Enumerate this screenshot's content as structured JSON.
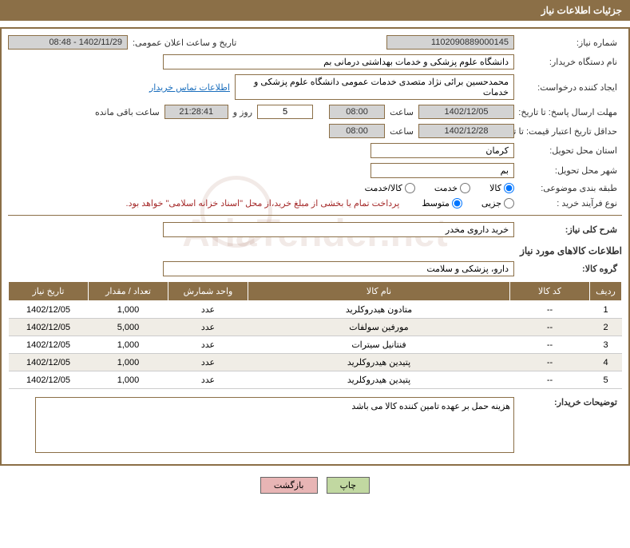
{
  "header": {
    "title": "جزئیات اطلاعات نیاز"
  },
  "fields": {
    "need_number_label": "شماره نیاز:",
    "need_number": "1102090889000145",
    "announce_datetime_label": "تاریخ و ساعت اعلان عمومی:",
    "announce_datetime": "1402/11/29 - 08:48",
    "buyer_org_label": "نام دستگاه خریدار:",
    "buyer_org": "دانشگاه علوم پزشکی و خدمات بهداشتی  درمانی بم",
    "requester_label": "ایجاد کننده درخواست:",
    "requester": "محمدحسین برائی نژاد متصدی خدمات عمومی دانشگاه علوم پزشکی و خدمات",
    "buyer_contact_link": "اطلاعات تماس خریدار",
    "deadline_label": "مهلت ارسال پاسخ: تا تاریخ:",
    "deadline_date": "1402/12/05",
    "hour_label": "ساعت",
    "deadline_hour": "08:00",
    "days_count": "5",
    "days_and_label": "روز و",
    "countdown": "21:28:41",
    "remaining_label": "ساعت باقی مانده",
    "validity_label": "حداقل تاریخ اعتبار قیمت: تا تاریخ:",
    "validity_date": "1402/12/28",
    "validity_hour": "08:00",
    "province_label": "استان محل تحویل:",
    "province": "کرمان",
    "city_label": "شهر محل تحویل:",
    "city": "بم",
    "category_label": "طبقه بندی موضوعی:",
    "radio_goods": "کالا",
    "radio_service": "خدمت",
    "radio_goods_service": "کالا/خدمت",
    "purchase_type_label": "نوع فرآیند خرید :",
    "radio_small": "جزیی",
    "radio_medium": "متوسط",
    "payment_note": "پرداخت تمام یا بخشی از مبلغ خرید،از محل \"اسناد خزانه اسلامی\" خواهد بود.",
    "general_desc_label": "شرح کلی نیاز:",
    "general_desc": "خرید داروی مخدر",
    "goods_info_title": "اطلاعات کالاهای مورد نیاز",
    "goods_group_label": "گروه کالا:",
    "goods_group": "دارو، پزشکی و سلامت",
    "buyer_notes_label": "توضیحات خریدار:",
    "buyer_notes": "هزینه حمل بر عهده تامین کننده کالا می باشد"
  },
  "table": {
    "headers": {
      "row": "ردیف",
      "code": "کد کالا",
      "name": "نام کالا",
      "unit": "واحد شمارش",
      "qty": "تعداد / مقدار",
      "date": "تاریخ نیاز"
    },
    "rows": [
      {
        "n": "1",
        "code": "--",
        "name": "متادون هیدروکلرید",
        "unit": "عدد",
        "qty": "1,000",
        "date": "1402/12/05"
      },
      {
        "n": "2",
        "code": "--",
        "name": "مورفین سولفات",
        "unit": "عدد",
        "qty": "5,000",
        "date": "1402/12/05"
      },
      {
        "n": "3",
        "code": "--",
        "name": "فنتانیل سیترات",
        "unit": "عدد",
        "qty": "1,000",
        "date": "1402/12/05"
      },
      {
        "n": "4",
        "code": "--",
        "name": "پتیدین هیدروکلرید",
        "unit": "عدد",
        "qty": "1,000",
        "date": "1402/12/05"
      },
      {
        "n": "5",
        "code": "--",
        "name": "پتیدین هیدروکلرید",
        "unit": "عدد",
        "qty": "1,000",
        "date": "1402/12/05"
      }
    ]
  },
  "buttons": {
    "print": "چاپ",
    "back": "بازگشت"
  },
  "watermark": "AriaTender.net",
  "colors": {
    "primary": "#8b6f47",
    "link": "#1a6ebd",
    "note": "#a52a2a",
    "btn_print": "#c1d8a1",
    "btn_back": "#e8b5b5"
  }
}
